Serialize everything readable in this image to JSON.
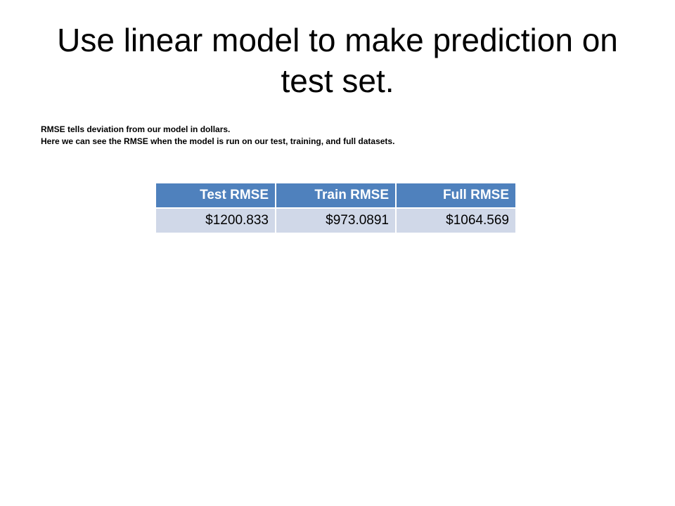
{
  "slide": {
    "title": "Use linear model to make prediction on test set.",
    "notes": [
      "RMSE tells deviation from our model in dollars.",
      "Here we can see the RMSE when the model is run on our test, training, and full datasets."
    ]
  },
  "table": {
    "headers": [
      "Test RMSE",
      "Train RMSE",
      "Full RMSE"
    ],
    "rows": [
      [
        "$1200.833",
        "$973.0891",
        "$1064.569"
      ]
    ],
    "header_color": "#4f81bd",
    "row_color": "#d0d8e8"
  }
}
